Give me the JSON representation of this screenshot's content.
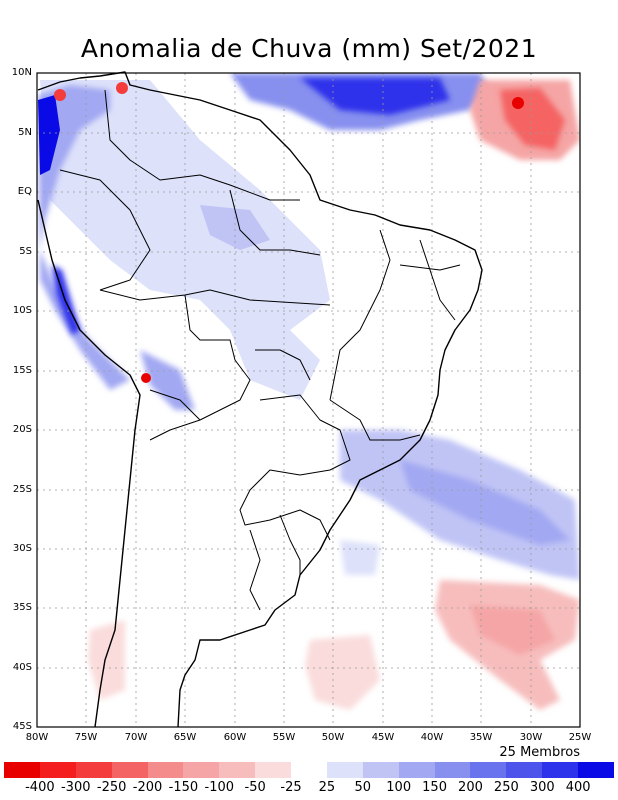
{
  "title": "Anomalia de Chuva (mm) Set/2021",
  "footer_note": "25 Membros",
  "lat_labels": [
    "10N",
    "5N",
    "EQ",
    "5S",
    "10S",
    "15S",
    "20S",
    "25S",
    "30S",
    "35S",
    "40S",
    "45S"
  ],
  "lon_labels": [
    "80W",
    "75W",
    "70W",
    "65W",
    "60W",
    "55W",
    "50W",
    "45W",
    "40W",
    "35W",
    "30W",
    "25W"
  ],
  "map_extent": {
    "lon_min": -80,
    "lon_max": -25,
    "lat_min": -45,
    "lat_max": 10
  },
  "colorbar": {
    "colors": [
      "#e80000",
      "#f51e1e",
      "#f53c3c",
      "#f56464",
      "#f58c8c",
      "#f5a5a5",
      "#f7bdbd",
      "#fadcdc",
      "#ffffff",
      "#dde1fa",
      "#c0c4f5",
      "#a2a8f2",
      "#8790ef",
      "#6a73ee",
      "#4c54ec",
      "#2d33ea",
      "#0a0ae6"
    ],
    "tick_labels": [
      "-400",
      "-300",
      "-250",
      "-200",
      "-150",
      "-100",
      "-50",
      "-25",
      "25",
      "50",
      "100",
      "150",
      "200",
      "250",
      "300",
      "400"
    ]
  }
}
